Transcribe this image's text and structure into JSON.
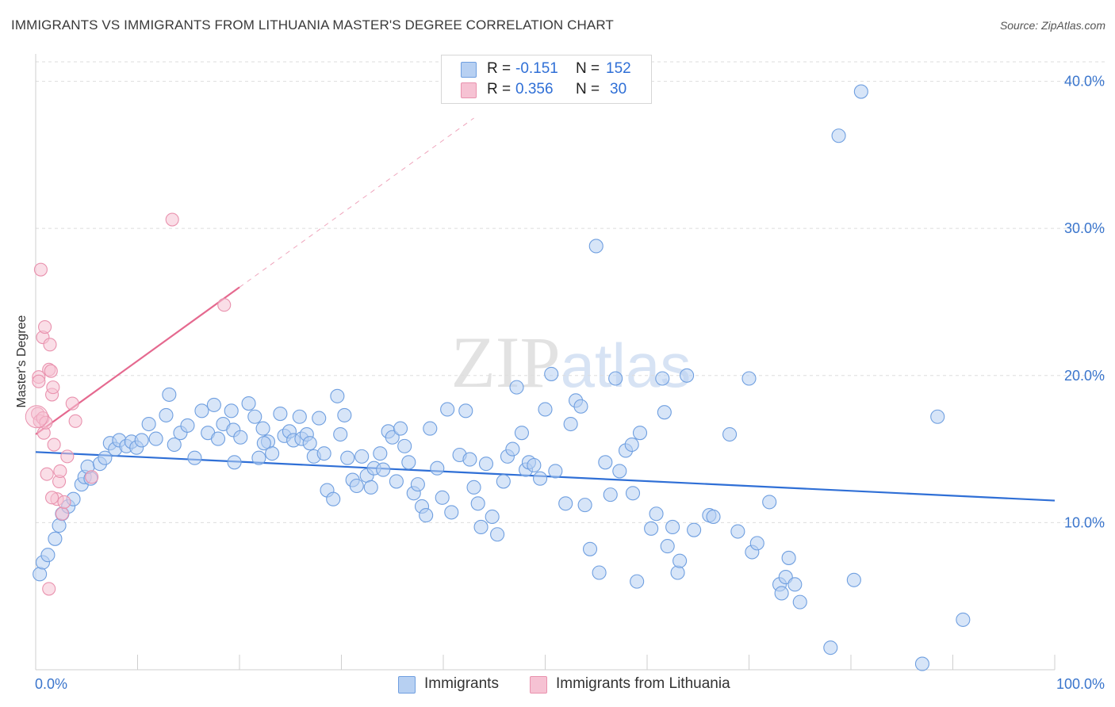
{
  "title": "IMMIGRANTS VS IMMIGRANTS FROM LITHUANIA MASTER'S DEGREE CORRELATION CHART",
  "source": "Source: ZipAtlas.com",
  "watermark": "ZIPatlas",
  "legend": {
    "rows": [
      {
        "r_label": "R =",
        "r_value": "-0.151",
        "n_label": "N =",
        "n_value": "152"
      },
      {
        "r_label": "R =",
        "r_value": "0.356",
        "n_label": "N =",
        "n_value": "30"
      }
    ]
  },
  "bottom_legend": [
    "Immigrants",
    "Immigrants from Lithuania"
  ],
  "colors": {
    "blue_fill": "#b7d0f2",
    "blue_stroke": "#6f9fe0",
    "blue_line": "#2f6fd6",
    "pink_fill": "#f6c2d3",
    "pink_stroke": "#e992ae",
    "pink_line": "#e5698f",
    "grid": "#dddddd",
    "axis_text": "#3a75cc"
  },
  "chart_data": {
    "type": "scatter",
    "title": "IMMIGRANTS VS IMMIGRANTS FROM LITHUANIA MASTER'S DEGREE CORRELATION CHART",
    "xlabel": "",
    "ylabel": "Master's Degree",
    "xlim": [
      0,
      100
    ],
    "ylim": [
      0,
      40
    ],
    "x_tick_labels": [
      "0.0%",
      "100.0%"
    ],
    "y_tick_labels": [
      "10.0%",
      "20.0%",
      "30.0%",
      "40.0%"
    ],
    "y_ticks": [
      10,
      20,
      30,
      40
    ],
    "series": [
      {
        "name": "Immigrants",
        "r": -0.151,
        "n": 152,
        "trend": {
          "x": [
            0,
            100
          ],
          "y": [
            14.8,
            11.5
          ]
        },
        "points": [
          [
            0.4,
            6.5
          ],
          [
            0.7,
            7.3
          ],
          [
            1.2,
            7.8
          ],
          [
            1.9,
            8.9
          ],
          [
            2.3,
            9.8
          ],
          [
            2.6,
            10.6
          ],
          [
            3.2,
            11.1
          ],
          [
            3.7,
            11.6
          ],
          [
            4.5,
            12.6
          ],
          [
            4.8,
            13.1
          ],
          [
            5.4,
            13.0
          ],
          [
            5.1,
            13.8
          ],
          [
            6.3,
            14.0
          ],
          [
            6.8,
            14.4
          ],
          [
            7.3,
            15.4
          ],
          [
            7.8,
            15.0
          ],
          [
            8.2,
            15.6
          ],
          [
            8.9,
            15.2
          ],
          [
            9.4,
            15.5
          ],
          [
            9.9,
            15.1
          ],
          [
            10.4,
            15.6
          ],
          [
            11.1,
            16.7
          ],
          [
            11.8,
            15.7
          ],
          [
            12.8,
            17.3
          ],
          [
            13.1,
            18.7
          ],
          [
            13.6,
            15.3
          ],
          [
            14.2,
            16.1
          ],
          [
            14.9,
            16.6
          ],
          [
            15.6,
            14.4
          ],
          [
            16.3,
            17.6
          ],
          [
            16.9,
            16.1
          ],
          [
            17.5,
            18.0
          ],
          [
            17.9,
            15.7
          ],
          [
            18.4,
            16.7
          ],
          [
            19.2,
            17.6
          ],
          [
            19.4,
            16.3
          ],
          [
            19.5,
            14.1
          ],
          [
            20.1,
            15.8
          ],
          [
            20.9,
            18.1
          ],
          [
            21.5,
            17.2
          ],
          [
            21.9,
            14.4
          ],
          [
            22.3,
            16.4
          ],
          [
            22.8,
            15.5
          ],
          [
            22.4,
            15.4
          ],
          [
            23.2,
            14.7
          ],
          [
            24.0,
            17.4
          ],
          [
            24.4,
            15.9
          ],
          [
            24.9,
            16.2
          ],
          [
            25.3,
            15.6
          ],
          [
            25.9,
            17.2
          ],
          [
            26.1,
            15.7
          ],
          [
            26.6,
            16.0
          ],
          [
            26.9,
            15.4
          ],
          [
            27.3,
            14.5
          ],
          [
            27.8,
            17.1
          ],
          [
            28.3,
            14.7
          ],
          [
            28.6,
            12.2
          ],
          [
            29.2,
            11.6
          ],
          [
            29.6,
            18.6
          ],
          [
            29.9,
            16.0
          ],
          [
            30.3,
            17.3
          ],
          [
            30.6,
            14.4
          ],
          [
            31.1,
            12.9
          ],
          [
            31.5,
            12.5
          ],
          [
            32.0,
            14.5
          ],
          [
            32.5,
            13.2
          ],
          [
            32.9,
            12.4
          ],
          [
            33.2,
            13.7
          ],
          [
            33.8,
            14.7
          ],
          [
            34.1,
            13.6
          ],
          [
            34.6,
            16.2
          ],
          [
            35.0,
            15.8
          ],
          [
            35.4,
            12.8
          ],
          [
            35.8,
            16.4
          ],
          [
            36.2,
            15.2
          ],
          [
            36.6,
            14.1
          ],
          [
            37.1,
            12.0
          ],
          [
            37.5,
            12.6
          ],
          [
            37.9,
            11.1
          ],
          [
            38.3,
            10.5
          ],
          [
            38.7,
            16.4
          ],
          [
            39.4,
            13.7
          ],
          [
            39.9,
            11.7
          ],
          [
            40.4,
            17.7
          ],
          [
            40.8,
            10.7
          ],
          [
            41.6,
            14.6
          ],
          [
            42.2,
            17.6
          ],
          [
            42.6,
            14.3
          ],
          [
            43.0,
            12.4
          ],
          [
            43.4,
            11.3
          ],
          [
            43.7,
            9.7
          ],
          [
            44.2,
            14.0
          ],
          [
            44.8,
            10.4
          ],
          [
            45.3,
            9.2
          ],
          [
            45.9,
            12.8
          ],
          [
            46.3,
            14.5
          ],
          [
            46.8,
            15.0
          ],
          [
            47.2,
            19.2
          ],
          [
            47.7,
            16.1
          ],
          [
            48.1,
            13.6
          ],
          [
            48.4,
            14.1
          ],
          [
            48.9,
            13.9
          ],
          [
            49.5,
            13.0
          ],
          [
            50.0,
            17.7
          ],
          [
            50.6,
            20.1
          ],
          [
            51.0,
            13.5
          ],
          [
            52.0,
            11.3
          ],
          [
            52.5,
            16.7
          ],
          [
            53.0,
            18.3
          ],
          [
            53.5,
            17.9
          ],
          [
            53.9,
            11.2
          ],
          [
            54.4,
            8.2
          ],
          [
            55.0,
            28.8
          ],
          [
            55.3,
            6.6
          ],
          [
            55.9,
            14.1
          ],
          [
            56.4,
            11.9
          ],
          [
            56.9,
            19.8
          ],
          [
            57.3,
            13.5
          ],
          [
            57.9,
            14.9
          ],
          [
            58.5,
            15.3
          ],
          [
            58.6,
            12.0
          ],
          [
            59.0,
            6.0
          ],
          [
            59.3,
            16.1
          ],
          [
            60.4,
            9.6
          ],
          [
            60.9,
            10.6
          ],
          [
            61.5,
            19.8
          ],
          [
            61.7,
            17.5
          ],
          [
            62.0,
            8.4
          ],
          [
            62.5,
            9.7
          ],
          [
            63.0,
            6.6
          ],
          [
            63.2,
            7.4
          ],
          [
            63.9,
            20.0
          ],
          [
            64.6,
            9.5
          ],
          [
            66.1,
            10.5
          ],
          [
            66.5,
            10.4
          ],
          [
            68.1,
            16.0
          ],
          [
            68.9,
            9.4
          ],
          [
            70.0,
            19.8
          ],
          [
            70.3,
            8.0
          ],
          [
            70.8,
            8.6
          ],
          [
            72.0,
            11.4
          ],
          [
            73.0,
            5.8
          ],
          [
            73.2,
            5.2
          ],
          [
            73.6,
            6.3
          ],
          [
            73.9,
            7.6
          ],
          [
            74.5,
            5.8
          ],
          [
            75.0,
            4.6
          ],
          [
            78.8,
            36.3
          ],
          [
            78.0,
            1.5
          ],
          [
            80.3,
            6.1
          ],
          [
            81.0,
            39.3
          ],
          [
            88.5,
            17.2
          ],
          [
            91.0,
            3.4
          ],
          [
            87.0,
            0.4
          ]
        ]
      },
      {
        "name": "Immigrants from Lithuania",
        "r": 0.356,
        "n": 30,
        "trend": {
          "x": [
            0,
            20
          ],
          "y": [
            16.0,
            26.0
          ],
          "dashed_to": {
            "x": 43,
            "y": 37.5
          }
        },
        "points": [
          [
            0.2,
            17.4
          ],
          [
            0.3,
            19.9
          ],
          [
            0.3,
            19.6
          ],
          [
            0.4,
            16.9
          ],
          [
            0.5,
            27.2
          ],
          [
            0.7,
            22.6
          ],
          [
            0.7,
            17.1
          ],
          [
            0.8,
            16.1
          ],
          [
            0.9,
            23.3
          ],
          [
            1.0,
            16.8
          ],
          [
            1.3,
            20.4
          ],
          [
            1.4,
            22.1
          ],
          [
            1.5,
            20.3
          ],
          [
            1.6,
            18.7
          ],
          [
            1.7,
            19.2
          ],
          [
            1.8,
            15.3
          ],
          [
            2.1,
            11.6
          ],
          [
            2.3,
            12.8
          ],
          [
            2.4,
            13.5
          ],
          [
            2.6,
            10.6
          ],
          [
            2.8,
            11.4
          ],
          [
            3.1,
            14.5
          ],
          [
            1.3,
            5.5
          ],
          [
            1.6,
            11.7
          ],
          [
            1.1,
            13.3
          ],
          [
            3.6,
            18.1
          ],
          [
            3.9,
            16.9
          ],
          [
            5.5,
            13.1
          ],
          [
            13.4,
            30.6
          ],
          [
            18.5,
            24.8
          ]
        ]
      }
    ]
  }
}
